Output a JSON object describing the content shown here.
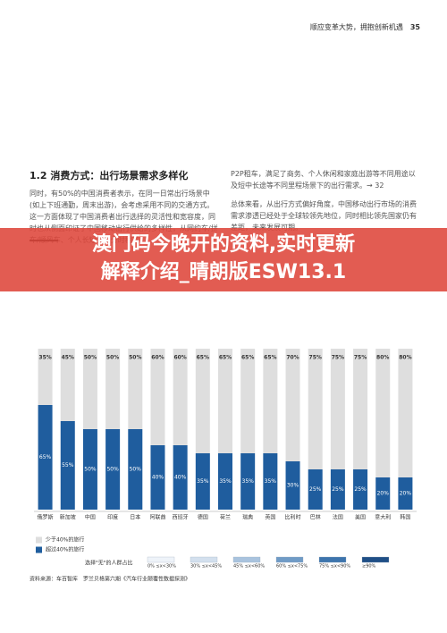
{
  "header": {
    "running_title": "顺应变革大势，拥抱创新机遇",
    "page_number": "35"
  },
  "section": {
    "title": "1.2 消费方式：出行场景需求多样化",
    "left_text": "同时，有50%的中国消费者表示，在同一日常出行场景中(如上下班通勤，周末出游)，会考虑采用不同的交通方式。这一方面体现了中国消费者出行选择的灵活性和宽容度，同时也从侧面印证了中国移动出行供给的多样性，从网约车/拼车/顺风车、个人长短租到分时租赁/",
    "right_text_1": "P2P租车，满足了商务、个人休闲和家庭出游等不同用途以及短中长途等不同里程场景下的出行需求。→ 32",
    "right_text_2": "总体来看，从出行方式偏好角度，中国移动出行市场的消费需求渗透已经处于全球较领先地位，同时相比领先国家仍有差距，未来发展可期。"
  },
  "banner": {
    "text_1": "澳门码今晚开的资料,实时更新",
    "text_2": "解释介绍_晴朗版ESW13.1"
  },
  "chart_data": {
    "type": "bar",
    "stacked": true,
    "categories": [
      "俄罗斯",
      "新加坡",
      "中国",
      "印度",
      "日本",
      "阿联酋",
      "西班牙",
      "德国",
      "荷兰",
      "瑞典",
      "英国",
      "比利时",
      "巴林",
      "法国",
      "美国",
      "意大利",
      "韩国"
    ],
    "ylim": [
      0,
      100
    ],
    "series": [
      {
        "name": "超过40%的旅行",
        "color": "#1f5d9e",
        "values": [
          65,
          55,
          50,
          50,
          50,
          40,
          40,
          35,
          35,
          35,
          35,
          30,
          25,
          25,
          25,
          20,
          20
        ],
        "value_labels": [
          "65%",
          "55%",
          "50%",
          "50%",
          "50%",
          "40%",
          "40%",
          "35%",
          "35%",
          "35%",
          "35%",
          "30%",
          "25%",
          "25%",
          "25%",
          "20%",
          "20%"
        ]
      },
      {
        "name": "少于40%的旅行",
        "color": "#dedede",
        "values": [
          35,
          45,
          50,
          50,
          50,
          60,
          60,
          65,
          65,
          65,
          65,
          70,
          75,
          75,
          75,
          80,
          80
        ],
        "value_labels": [
          "35%",
          "45%",
          "50%",
          "50%",
          "50%",
          "60%",
          "60%",
          "65%",
          "65%",
          "65%",
          "65%",
          "70%",
          "75%",
          "75%",
          "75%",
          "80%",
          "80%"
        ]
      }
    ],
    "scale_legend": {
      "title": "选择\"无\"的人群占比",
      "items": [
        {
          "label": "0% ≤x<30%",
          "color": "#eef3f9"
        },
        {
          "label": "30% ≤x<45%",
          "color": "#d3e0ee"
        },
        {
          "label": "45% ≤x<60%",
          "color": "#a9c3de"
        },
        {
          "label": "60% ≤x<75%",
          "color": "#6f9bc6"
        },
        {
          "label": "75% ≤x<90%",
          "color": "#3d74ad"
        },
        {
          "label": "≥90%",
          "color": "#1f4f86"
        }
      ]
    },
    "source": "资料来源：车百智库　罗兰贝格第六期《汽车行业颠覆性数据探测》"
  }
}
